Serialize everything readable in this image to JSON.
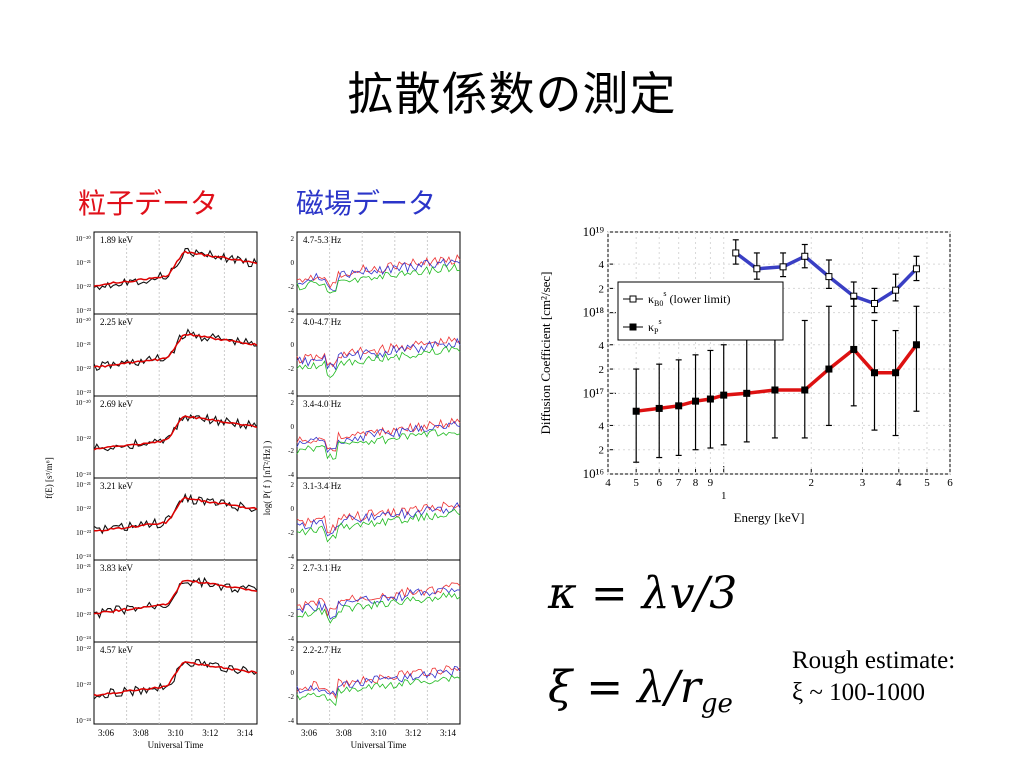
{
  "title": "拡散係数の測定",
  "headers": {
    "particle": "粒子データ",
    "field": "磁場データ"
  },
  "left_panels": {
    "ylabel": "f(E) [s³/m⁶]",
    "xlabel": "Universal Time",
    "xticks": [
      "3:06",
      "3:08",
      "3:10",
      "3:12",
      "3:14"
    ],
    "panels": [
      {
        "label": "1.89 keV",
        "yticks": [
          "10⁻²⁰",
          "10⁻²¹",
          "10⁻²²",
          "10⁻²³"
        ]
      },
      {
        "label": "2.25 keV",
        "yticks": [
          "10⁻²⁰",
          "10⁻²¹",
          "10⁻²²",
          "10⁻²³"
        ]
      },
      {
        "label": "2.69 keV",
        "yticks": [
          "10⁻²⁰",
          "10⁻²²",
          "10⁻²⁴"
        ]
      },
      {
        "label": "3.21 keV",
        "yticks": [
          "10⁻²¹",
          "10⁻²²",
          "10⁻²³",
          "10⁻²⁴"
        ]
      },
      {
        "label": "3.83 keV",
        "yticks": [
          "10⁻²¹",
          "10⁻²²",
          "10⁻²³",
          "10⁻²⁴"
        ]
      },
      {
        "label": "4.57 keV",
        "yticks": [
          "10⁻²²",
          "10⁻²³",
          "10⁻²⁴"
        ]
      }
    ]
  },
  "mid_panels": {
    "ylabel": "log( P( f ) [nT²/Hz] )",
    "xlabel": "Universal Time",
    "xticks": [
      "3:06",
      "3:08",
      "3:10",
      "3:12",
      "3:14"
    ],
    "yticks": [
      "2",
      "0",
      "-2",
      "-4"
    ],
    "panels": [
      {
        "label": "4.7-5.3 Hz"
      },
      {
        "label": "4.0-4.7 Hz"
      },
      {
        "label": "3.4-4.0 Hz"
      },
      {
        "label": "3.1-3.4 Hz"
      },
      {
        "label": "2.7-3.1 Hz"
      },
      {
        "label": "2.2-2.7 Hz"
      }
    ]
  },
  "chart_data": {
    "type": "line",
    "xlabel": "Energy [keV]",
    "ylabel": "Diffusion Coefficient [cm²/sec]",
    "xscale": "log",
    "yscale": "log",
    "xlim": [
      0.4,
      6
    ],
    "ylim": [
      1e+16,
      1e+19
    ],
    "x_tick_labels": [
      "4",
      "5",
      "6",
      "7",
      "8",
      "9",
      "1",
      "2",
      "3",
      "4",
      "5",
      "6"
    ],
    "y_tick_labels": [
      "10¹⁹",
      "4",
      "2",
      "10¹⁸",
      "4",
      "2",
      "10¹⁷",
      "4",
      "2",
      "10¹⁶"
    ],
    "legend_placement": "middle-left",
    "series": [
      {
        "name": "κB0s (lower limit)",
        "legend_main": "κ",
        "legend_sub": "B0",
        "legend_sup": "s",
        "legend_note": "(lower limit)",
        "color": "#3a3fc4",
        "marker": "open-square",
        "x": [
          1.1,
          1.3,
          1.6,
          1.9,
          2.3,
          2.8,
          3.3,
          3.9,
          4.6
        ],
        "y": [
          5.5e+18,
          3.5e+18,
          3.7e+18,
          5e+18,
          2.8e+18,
          1.6e+18,
          1.3e+18,
          1.9e+18,
          3.5e+18
        ],
        "err_hi": [
          8e+18,
          5.5e+18,
          5.5e+18,
          7e+18,
          4.5e+18,
          2.4e+18,
          2e+18,
          3e+18,
          5e+18
        ],
        "err_lo": [
          4e+18,
          2.6e+18,
          2.8e+18,
          3.6e+18,
          2e+18,
          1.2e+18,
          1e+18,
          1.4e+18,
          2.5e+18
        ]
      },
      {
        "name": "κPs",
        "legend_main": "κ",
        "legend_sub": "P",
        "legend_sup": "s",
        "legend_note": "",
        "color": "#dd1111",
        "marker": "filled-square",
        "x": [
          0.5,
          0.6,
          0.7,
          0.8,
          0.9,
          1.0,
          1.2,
          1.5,
          1.9,
          2.3,
          2.8,
          3.3,
          3.9,
          4.6
        ],
        "y": [
          6e+16,
          6.5e+16,
          7e+16,
          8e+16,
          8.5e+16,
          9.5e+16,
          1e+17,
          1.1e+17,
          1.1e+17,
          2e+17,
          3.5e+17,
          1.8e+17,
          1.8e+17,
          4e+17
        ],
        "err_hi": [
          2e+17,
          2.3e+17,
          2.6e+17,
          3e+17,
          3.4e+17,
          4e+17,
          5e+17,
          6e+17,
          8e+17,
          1.2e+18,
          1.5e+18,
          8e+17,
          6e+17,
          1.2e+18
        ],
        "err_lo": [
          1.4e+16,
          1.6e+16,
          1.7e+16,
          2e+16,
          2.1e+16,
          2.3e+16,
          2.5e+16,
          2.8e+16,
          2.8e+16,
          4e+16,
          7e+16,
          3.5e+16,
          3e+16,
          6e+16
        ]
      }
    ]
  },
  "equations": {
    "kappa": "κ = λv/3",
    "xi": "ξ = λ/r"
  },
  "eq_parts": {
    "xi_sub": "ge"
  },
  "estimate": {
    "line1": "Rough estimate:",
    "line2": "ξ ~ 100-1000"
  }
}
